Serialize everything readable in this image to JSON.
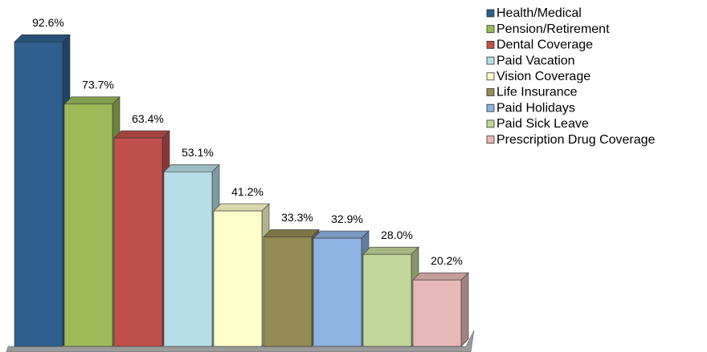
{
  "chart_data": {
    "type": "bar",
    "series": [
      {
        "name": "Health/Medical",
        "color": "#2e5f8e",
        "values": [
          92.6
        ],
        "value_labels": [
          "92.6%"
        ]
      },
      {
        "name": "Pension/Retirement",
        "color": "#9bbb59",
        "values": [
          73.7
        ],
        "value_labels": [
          "73.7%"
        ]
      },
      {
        "name": "Dental Coverage",
        "color": "#c0504d",
        "values": [
          63.4
        ],
        "value_labels": [
          "63.4%"
        ]
      },
      {
        "name": "Paid Vacation",
        "color": "#b7dde8",
        "values": [
          53.1
        ],
        "value_labels": [
          "53.1%"
        ]
      },
      {
        "name": "Vision Coverage",
        "color": "#ffffcc",
        "values": [
          41.2
        ],
        "value_labels": [
          "41.2%"
        ]
      },
      {
        "name": "Life Insurance",
        "color": "#948a54",
        "values": [
          33.3
        ],
        "value_labels": [
          "33.3%"
        ]
      },
      {
        "name": "Paid Holidays",
        "color": "#8db3e2",
        "values": [
          32.9
        ],
        "value_labels": [
          "32.9%"
        ]
      },
      {
        "name": "Paid Sick Leave",
        "color": "#c3d69b",
        "values": [
          28.0
        ],
        "value_labels": [
          "28.0%"
        ]
      },
      {
        "name": "Prescription Drug Coverage",
        "color": "#e6b9b8",
        "values": [
          20.2
        ],
        "value_labels": [
          "20.2%"
        ]
      }
    ],
    "ylim": [
      0,
      100
    ],
    "legend": "right"
  }
}
